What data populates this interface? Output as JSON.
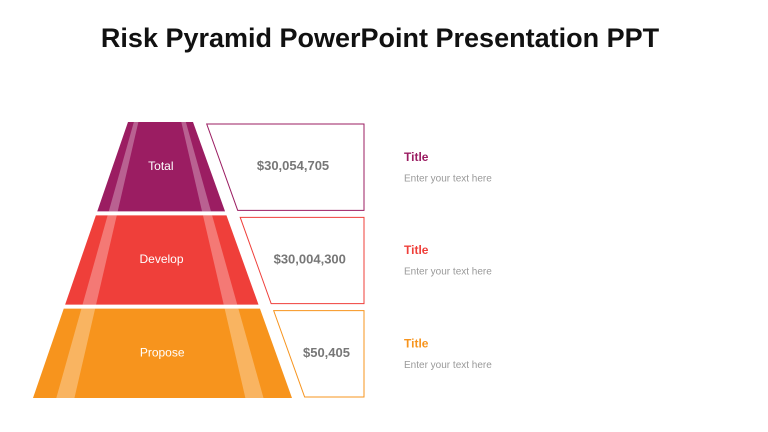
{
  "title": "Risk Pyramid PowerPoint Presentation PPT",
  "levels": [
    {
      "label": "Total",
      "amount": "$30,054,705",
      "heading": "Title",
      "text": "Enter your text here",
      "color": "#9b1d62"
    },
    {
      "label": "Develop",
      "amount": "$30,004,300",
      "heading": "Title",
      "text": "Enter your text here",
      "color": "#ef3f3a"
    },
    {
      "label": "Propose",
      "amount": "$50,405",
      "heading": "Title",
      "text": "Enter your text here",
      "color": "#f7941d"
    }
  ]
}
